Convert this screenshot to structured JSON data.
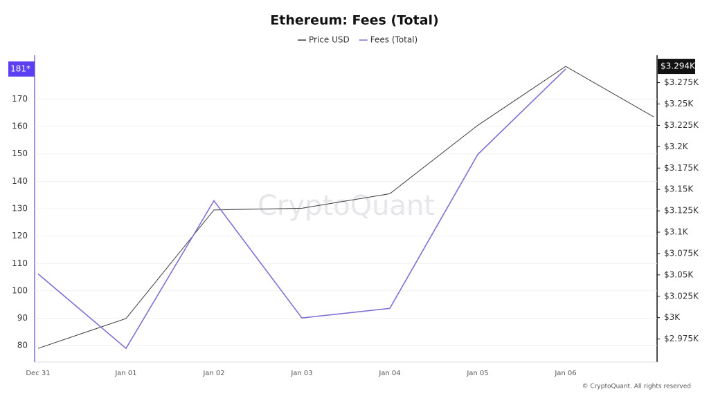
{
  "chart_data": {
    "type": "line",
    "title": "Ethereum: Fees (Total)",
    "categories": [
      "Dec 31",
      "Jan 01",
      "Jan 02",
      "Jan 03",
      "Jan 04",
      "Jan 05",
      "Jan 06",
      null
    ],
    "series": [
      {
        "name": "Price USD",
        "color": "#3a3a3a",
        "axis": "y2",
        "values": [
          2964,
          2999,
          3126,
          3128,
          3145,
          3225,
          3294,
          3235
        ],
        "value_labels": [
          null,
          null,
          null,
          null,
          null,
          null,
          "$3.294K",
          null
        ]
      },
      {
        "name": "Fees (Total)",
        "color": "#7b6fd6",
        "values": [
          106.2,
          79,
          132.9,
          90.1,
          93.6,
          149.8,
          181,
          null
        ],
        "value_labels": [
          null,
          null,
          null,
          null,
          null,
          null,
          "181*",
          null
        ]
      }
    ],
    "ylim": [
      74,
      186
    ],
    "yticks": [
      80,
      90,
      100,
      110,
      120,
      130,
      140,
      150,
      160,
      170
    ],
    "y2lim": [
      2948,
      3307
    ],
    "y2ticks": [
      {
        "value": 2975,
        "label": "$2.975K"
      },
      {
        "value": 3000,
        "label": "$3K"
      },
      {
        "value": 3025,
        "label": "$3.025K"
      },
      {
        "value": 3050,
        "label": "$3.05K"
      },
      {
        "value": 3075,
        "label": "$3.075K"
      },
      {
        "value": 3100,
        "label": "$3.1K"
      },
      {
        "value": 3125,
        "label": "$3.125K"
      },
      {
        "value": 3150,
        "label": "$3.15K"
      },
      {
        "value": 3175,
        "label": "$3.175K"
      },
      {
        "value": 3200,
        "label": "$3.2K"
      },
      {
        "value": 3225,
        "label": "$3.225K"
      },
      {
        "value": 3250,
        "label": "$3.25K"
      },
      {
        "value": 3275,
        "label": "$3.275K"
      }
    ],
    "grid": true,
    "legend": "top",
    "watermark": "CryptoQuant",
    "credit": "© CryptoQuant. All rights reserved"
  }
}
